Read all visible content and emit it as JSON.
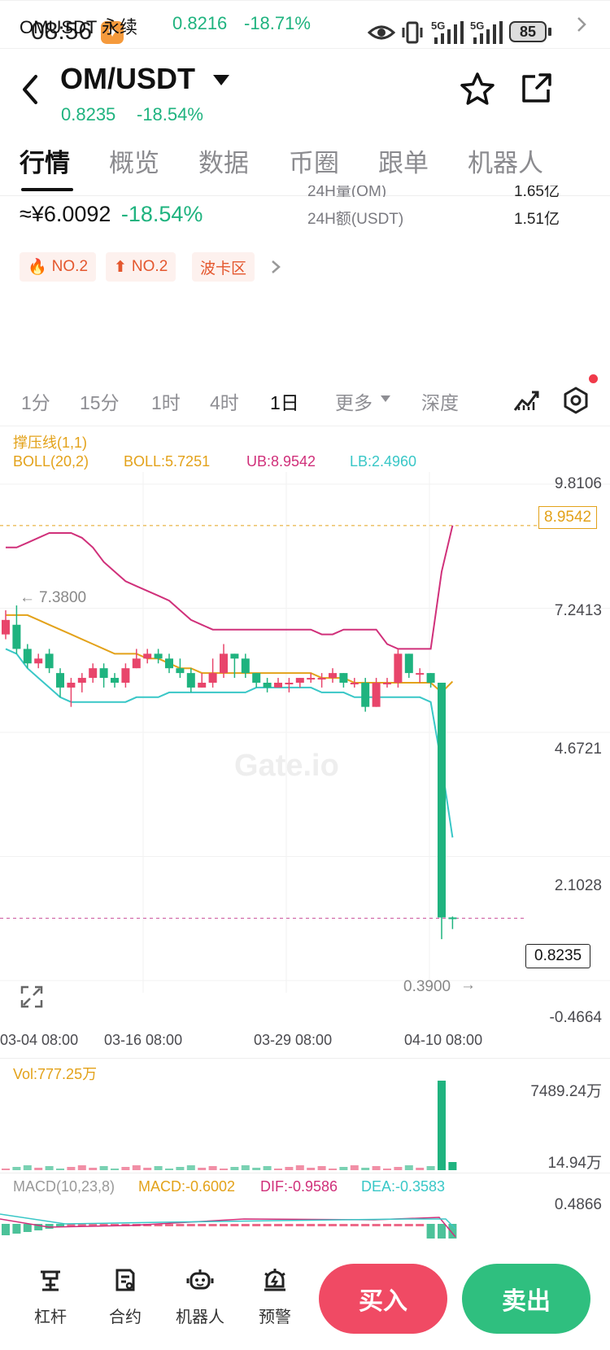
{
  "status": {
    "time": "08:56",
    "battery": "85",
    "net1": "5G",
    "net2": "5G"
  },
  "header": {
    "pair": "OM/USDT",
    "price": "0.8235",
    "change": "-18.54%"
  },
  "tabs": [
    {
      "label": "行情"
    },
    {
      "label": "概览"
    },
    {
      "label": "数据"
    },
    {
      "label": "币圈"
    },
    {
      "label": "跟单"
    },
    {
      "label": "机器人"
    }
  ],
  "summary": {
    "cny_price": "≈¥6.0092",
    "cny_change": "-18.54%",
    "vol24_label": "24H量(OM)",
    "vol24_value": "1.65亿",
    "amt24_label": "24H额(USDT)",
    "amt24_value": "1.51亿",
    "tags": [
      {
        "label": "NO.2",
        "icon": "flame-icon"
      },
      {
        "label": "NO.2",
        "icon": "arrow-up-icon"
      },
      {
        "label": "波卡区",
        "icon": ""
      }
    ]
  },
  "perpetual": {
    "name": "OMUSDT 永续",
    "price": "0.8216",
    "change": "-18.71%"
  },
  "timeframes": [
    {
      "label": "1分"
    },
    {
      "label": "15分"
    },
    {
      "label": "1时"
    },
    {
      "label": "4时"
    },
    {
      "label": "1日"
    },
    {
      "label": "更多"
    },
    {
      "label": "深度"
    }
  ],
  "indicators": {
    "sr": "撑压线(1,1)",
    "boll_params": "BOLL(20,2)",
    "boll": "BOLL:5.7251",
    "ub": "UB:8.9542",
    "lb": "LB:2.4960"
  },
  "chart_data": {
    "type": "candlestick",
    "yaxis_ticks": [
      "9.8106",
      "7.2413",
      "4.6721",
      "2.1028",
      "-0.4664"
    ],
    "ylim": [
      -0.4664,
      9.8106
    ],
    "xaxis_ticks": [
      "03-04 08:00",
      "03-16 08:00",
      "03-29 08:00",
      "04-10 08:00"
    ],
    "price_tag": "8.9542",
    "current_price": "0.8235",
    "high_marker": "7.3800",
    "low_marker": "0.3900",
    "watermark": "Gate.io",
    "candles": [
      [
        6.7,
        7.0,
        7.2,
        6.6
      ],
      [
        6.9,
        6.4,
        7.3,
        6.3
      ],
      [
        6.4,
        6.1,
        6.5,
        6.0
      ],
      [
        6.1,
        6.2,
        6.3,
        6.0
      ],
      [
        6.3,
        6.0,
        6.4,
        5.9
      ],
      [
        5.9,
        5.6,
        6.0,
        5.4
      ],
      [
        5.6,
        5.7,
        5.8,
        5.2
      ],
      [
        5.7,
        5.8,
        5.9,
        5.5
      ],
      [
        5.8,
        6.0,
        6.1,
        5.7
      ],
      [
        6.0,
        5.8,
        6.1,
        5.6
      ],
      [
        5.8,
        5.7,
        5.9,
        5.6
      ],
      [
        5.7,
        6.0,
        6.1,
        5.6
      ],
      [
        6.0,
        6.2,
        6.4,
        6.0
      ],
      [
        6.2,
        6.3,
        6.4,
        6.1
      ],
      [
        6.3,
        6.2,
        6.4,
        6.1
      ],
      [
        6.2,
        6.0,
        6.3,
        5.9
      ],
      [
        6.0,
        5.9,
        6.2,
        5.8
      ],
      [
        5.9,
        5.6,
        6.0,
        5.5
      ],
      [
        5.6,
        5.7,
        5.9,
        5.6
      ],
      [
        5.7,
        5.9,
        6.2,
        5.6
      ],
      [
        5.9,
        6.3,
        6.5,
        5.8
      ],
      [
        6.3,
        6.2,
        6.3,
        5.8
      ],
      [
        6.2,
        5.9,
        6.3,
        5.8
      ],
      [
        5.9,
        5.7,
        5.9,
        5.6
      ],
      [
        5.7,
        5.6,
        5.8,
        5.5
      ],
      [
        5.6,
        5.7,
        5.8,
        5.6
      ],
      [
        5.7,
        5.7,
        5.8,
        5.5
      ],
      [
        5.7,
        5.8,
        5.8,
        5.6
      ],
      [
        5.8,
        5.8,
        5.9,
        5.7
      ],
      [
        5.8,
        5.8,
        5.9,
        5.6
      ],
      [
        5.8,
        5.9,
        6.0,
        5.7
      ],
      [
        5.9,
        5.7,
        5.9,
        5.6
      ],
      [
        5.7,
        5.7,
        5.8,
        5.6
      ],
      [
        5.7,
        5.2,
        5.8,
        5.1
      ],
      [
        5.2,
        5.7,
        5.8,
        5.2
      ],
      [
        5.7,
        5.7,
        5.8,
        5.6
      ],
      [
        5.7,
        6.3,
        6.4,
        5.6
      ],
      [
        6.3,
        5.9,
        6.3,
        5.8
      ],
      [
        5.9,
        5.9,
        6.0,
        5.7
      ],
      [
        5.9,
        5.7,
        5.9,
        5.6
      ],
      [
        5.7,
        0.84,
        5.7,
        0.39
      ],
      [
        0.84,
        0.82,
        0.86,
        0.6
      ]
    ],
    "boll_upper": [
      8.5,
      8.5,
      8.6,
      8.7,
      8.8,
      8.8,
      8.8,
      8.7,
      8.5,
      8.2,
      8.0,
      7.8,
      7.7,
      7.6,
      7.5,
      7.4,
      7.2,
      7.0,
      6.9,
      6.8,
      6.8,
      6.8,
      6.8,
      6.8,
      6.8,
      6.8,
      6.8,
      6.8,
      6.8,
      6.7,
      6.7,
      6.8,
      6.8,
      6.8,
      6.8,
      6.5,
      6.4,
      6.4,
      6.4,
      6.4,
      8.0,
      8.9542
    ],
    "boll_mid": [
      7.1,
      7.1,
      7.1,
      7.0,
      6.9,
      6.8,
      6.7,
      6.6,
      6.5,
      6.4,
      6.3,
      6.3,
      6.3,
      6.2,
      6.2,
      6.1,
      6.0,
      6.0,
      5.9,
      5.9,
      5.9,
      5.9,
      5.9,
      5.9,
      5.9,
      5.9,
      5.9,
      5.9,
      5.9,
      5.8,
      5.8,
      5.8,
      5.7,
      5.7,
      5.7,
      5.7,
      5.7,
      5.7,
      5.7,
      5.7,
      5.5,
      5.7251
    ],
    "boll_lower": [
      6.4,
      6.3,
      6.0,
      5.8,
      5.6,
      5.4,
      5.3,
      5.3,
      5.3,
      5.3,
      5.3,
      5.3,
      5.4,
      5.4,
      5.4,
      5.5,
      5.5,
      5.5,
      5.5,
      5.5,
      5.5,
      5.5,
      5.5,
      5.6,
      5.6,
      5.6,
      5.6,
      5.6,
      5.6,
      5.5,
      5.5,
      5.5,
      5.4,
      5.4,
      5.4,
      5.4,
      5.4,
      5.4,
      5.4,
      5.3,
      4.0,
      2.496
    ],
    "volume": {
      "label": "Vol:777.25万",
      "ticks": [
        "7489.24万",
        "14.94万"
      ]
    },
    "macd": {
      "params": "MACD(10,23,8)",
      "macd": "MACD:-0.6002",
      "dif": "DIF:-0.9586",
      "dea": "DEA:-0.3583",
      "tick": "0.4866"
    }
  },
  "bottom_nav": [
    {
      "label": "杠杆",
      "icon": "leverage-icon"
    },
    {
      "label": "合约",
      "icon": "contract-icon"
    },
    {
      "label": "机器人",
      "icon": "robot-icon"
    },
    {
      "label": "预警",
      "icon": "alert-icon"
    }
  ],
  "actions": {
    "buy": "买入",
    "sell": "卖出"
  },
  "colors": {
    "up": "#e8456b",
    "down": "#1fb37f",
    "ub": "#d0307a",
    "mid": "#e3a21a",
    "lb": "#39c7c7",
    "buy": "#f04a64",
    "sell": "#2fbf7f"
  }
}
